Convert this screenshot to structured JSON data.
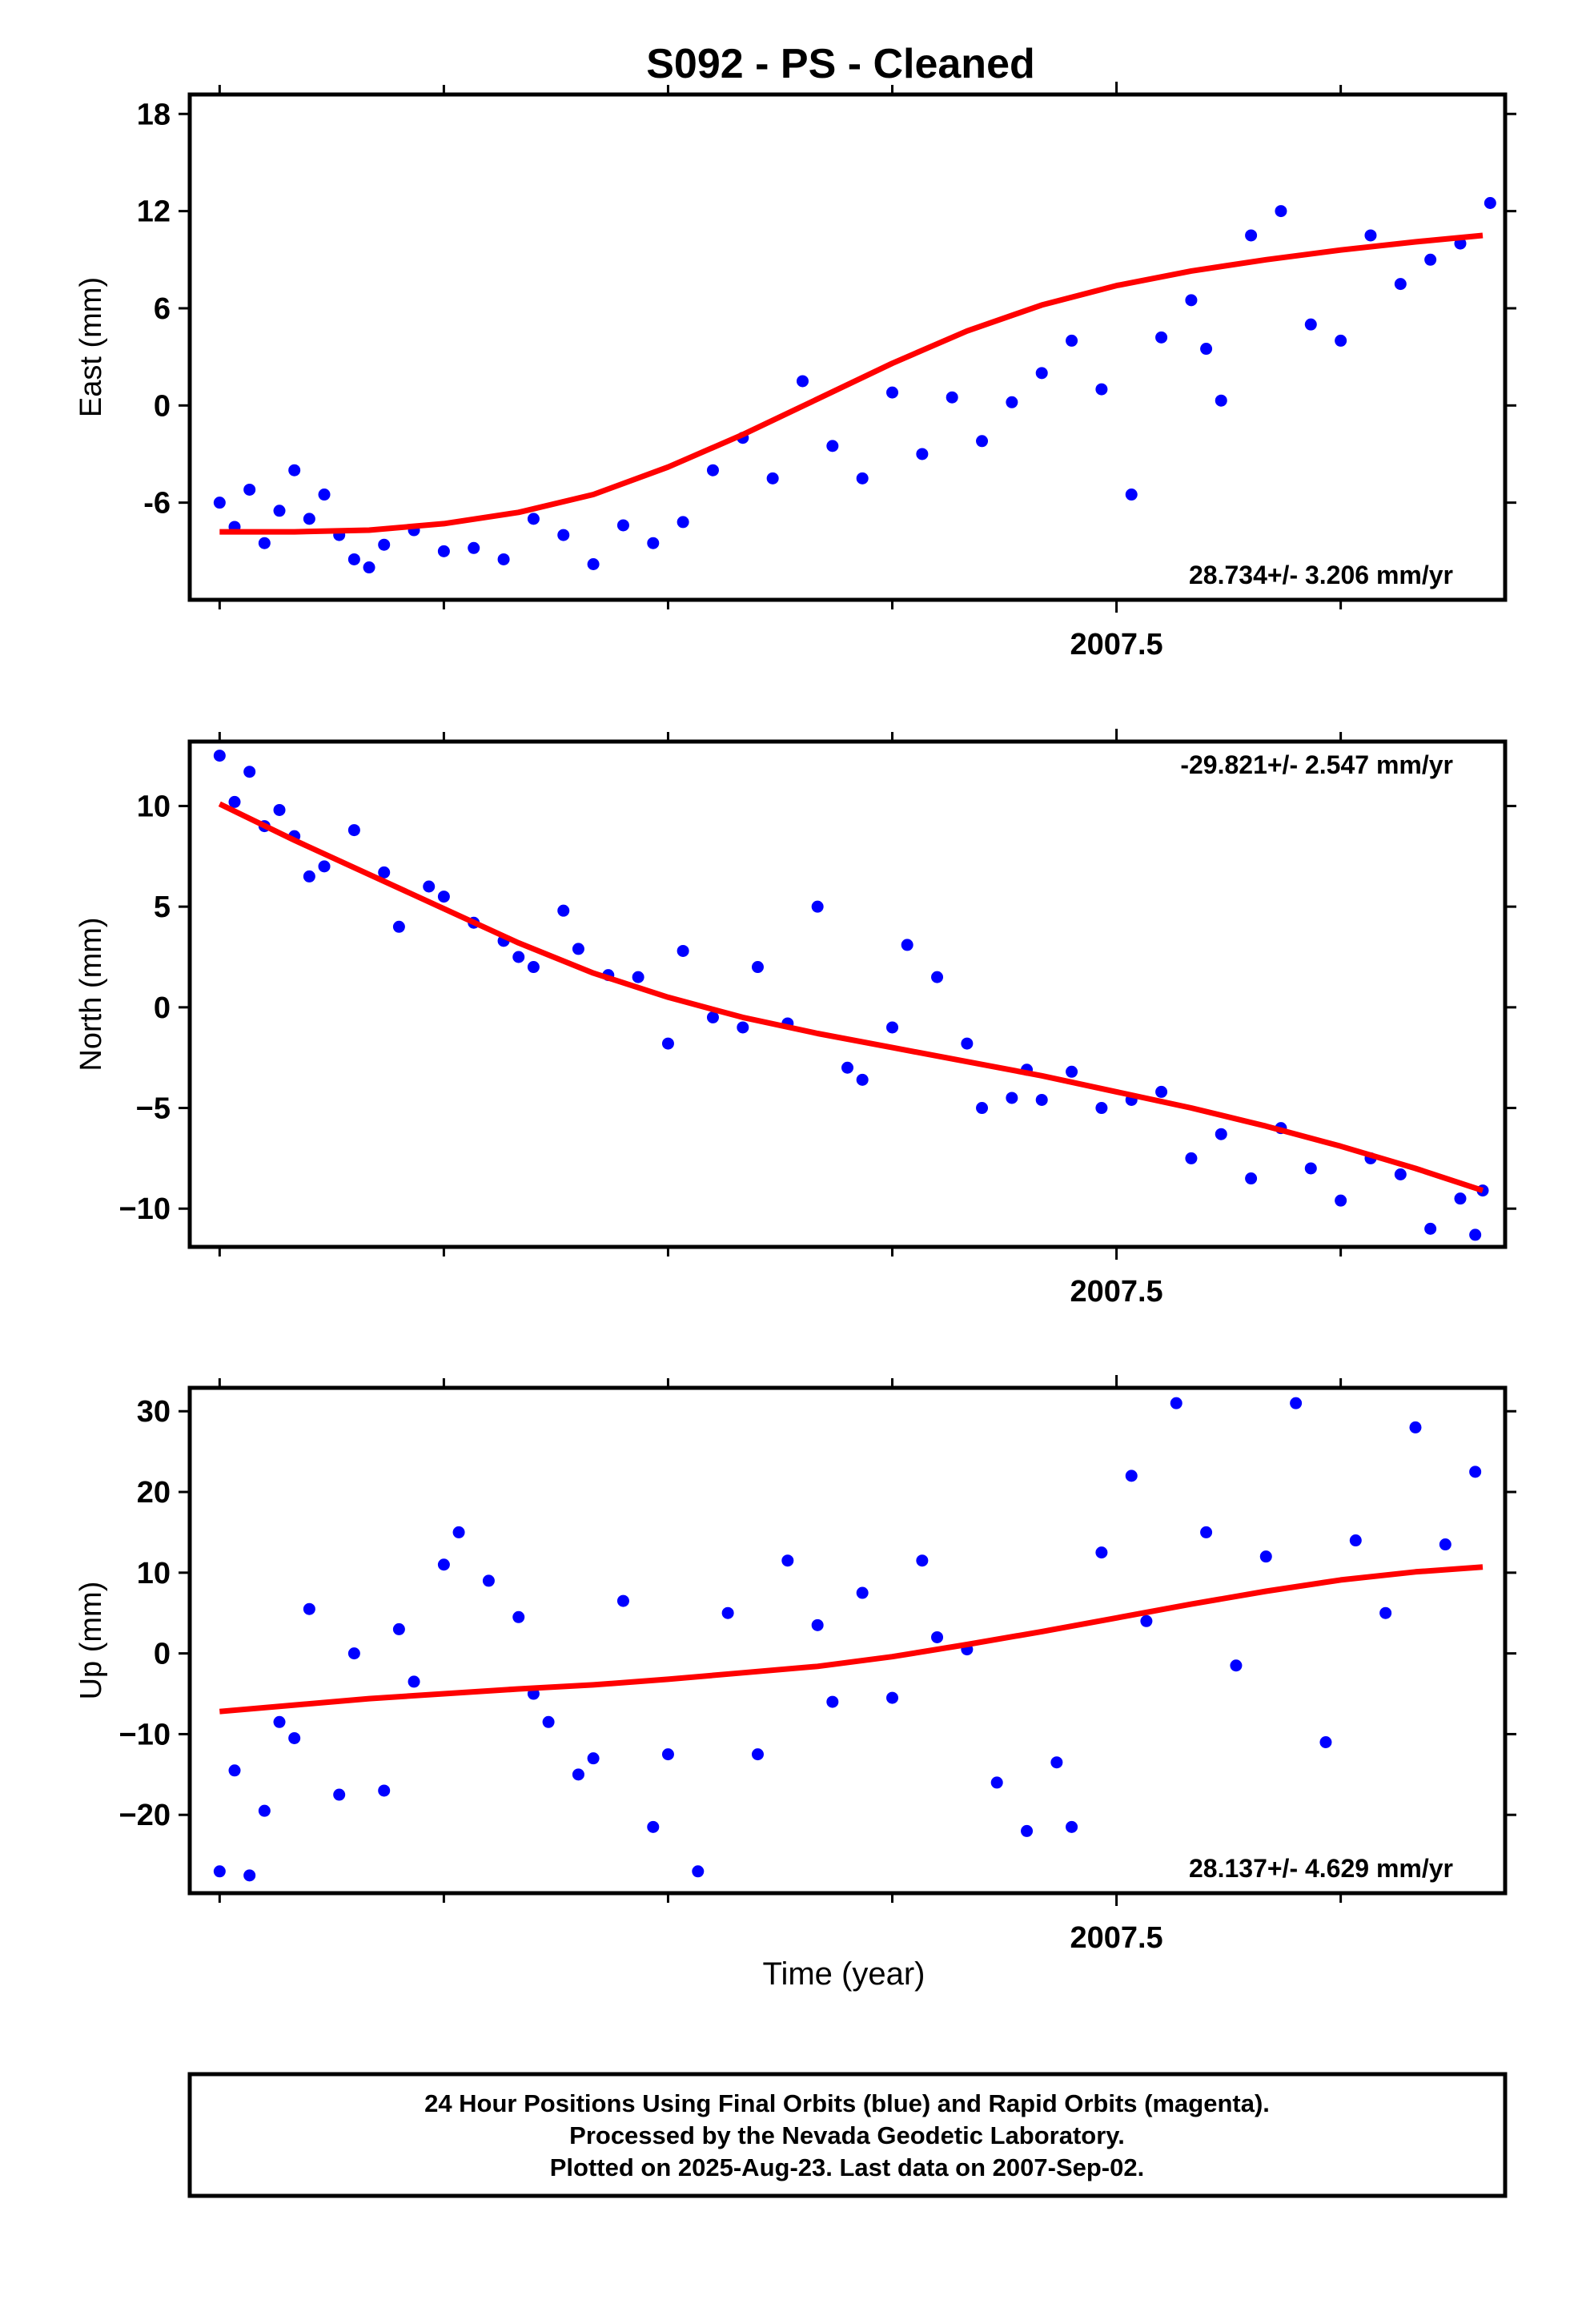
{
  "page_title": "S092  - PS - Cleaned",
  "x_axis_label": "Time (year)",
  "footer": {
    "line1": "24 Hour Positions Using Final Orbits (blue) and Rapid Orbits (magenta).",
    "line2": "Processed by the Nevada Geodetic Laboratory.",
    "line3": "Plotted on 2025-Aug-23. Last data on 2007-Sep-02."
  },
  "colors": {
    "points": "#0000ff",
    "fit": "#ff0000",
    "frame": "#000000"
  },
  "chart_data": [
    {
      "type": "scatter",
      "ylabel": "East (mm)",
      "xlim": [
        2006.88,
        2007.76
      ],
      "ylim": [
        -12.0,
        19.2
      ],
      "x_major_ticks": [
        2007.5
      ],
      "x_major_labels": [
        "2007.5"
      ],
      "x_minor_ticks": [
        2006.9,
        2007.05,
        2007.2,
        2007.35,
        2007.65
      ],
      "yticks": [
        -6,
        0,
        6,
        12,
        18
      ],
      "ytick_labels": [
        "-6",
        "0",
        "6",
        "12",
        "18"
      ],
      "rate_label": "28.734+/- 3.206 mm/yr",
      "rate_position": "bottom-right",
      "series": [
        {
          "kind": "points",
          "x": [
            2006.9,
            2006.91,
            2006.92,
            2006.93,
            2006.94,
            2006.95,
            2006.96,
            2006.97,
            2006.98,
            2006.99,
            2007.0,
            2007.01,
            2007.03,
            2007.05,
            2007.07,
            2007.09,
            2007.11,
            2007.13,
            2007.15,
            2007.17,
            2007.19,
            2007.21,
            2007.23,
            2007.25,
            2007.27,
            2007.29,
            2007.31,
            2007.33,
            2007.35,
            2007.37,
            2007.39,
            2007.41,
            2007.43,
            2007.45,
            2007.47,
            2007.49,
            2007.51,
            2007.53,
            2007.55,
            2007.56,
            2007.57,
            2007.59,
            2007.61,
            2007.63,
            2007.65,
            2007.67,
            2007.69,
            2007.71,
            2007.73,
            2007.75
          ],
          "y": [
            -6.0,
            -7.5,
            -5.2,
            -8.5,
            -6.5,
            -4.0,
            -7.0,
            -5.5,
            -8.0,
            -9.5,
            -10.0,
            -8.6,
            -7.7,
            -9.0,
            -8.8,
            -9.5,
            -7.0,
            -8.0,
            -9.8,
            -7.4,
            -8.5,
            -7.2,
            -4.0,
            -2.0,
            -4.5,
            1.5,
            -2.5,
            -4.5,
            0.8,
            -3.0,
            0.5,
            -2.2,
            0.2,
            2.0,
            4.0,
            1.0,
            -5.5,
            4.2,
            6.5,
            3.5,
            0.3,
            10.5,
            12.0,
            5.0,
            4.0,
            10.5,
            7.5,
            9.0,
            10.0,
            12.5
          ]
        },
        {
          "kind": "fit",
          "x": [
            2006.9,
            2006.95,
            2007.0,
            2007.05,
            2007.1,
            2007.15,
            2007.2,
            2007.25,
            2007.3,
            2007.35,
            2007.4,
            2007.45,
            2007.5,
            2007.55,
            2007.6,
            2007.65,
            2007.7,
            2007.745
          ],
          "y": [
            -7.8,
            -7.8,
            -7.7,
            -7.3,
            -6.6,
            -5.5,
            -3.8,
            -1.8,
            0.4,
            2.6,
            4.6,
            6.2,
            7.4,
            8.3,
            9.0,
            9.6,
            10.1,
            10.5
          ]
        }
      ]
    },
    {
      "type": "scatter",
      "ylabel": "North (mm)",
      "xlim": [
        2006.88,
        2007.76
      ],
      "ylim": [
        -11.9,
        13.2
      ],
      "x_major_ticks": [
        2007.5
      ],
      "x_major_labels": [
        "2007.5"
      ],
      "x_minor_ticks": [
        2006.9,
        2007.05,
        2007.2,
        2007.35,
        2007.65
      ],
      "yticks": [
        -10,
        -5,
        0,
        5,
        10
      ],
      "ytick_labels": [
        "−10",
        "−5",
        "0",
        "5",
        "10"
      ],
      "rate_label": "-29.821+/- 2.547 mm/yr",
      "rate_position": "top-right",
      "series": [
        {
          "kind": "points",
          "x": [
            2006.9,
            2006.91,
            2006.92,
            2006.93,
            2006.94,
            2006.95,
            2006.96,
            2006.97,
            2006.99,
            2007.01,
            2007.02,
            2007.04,
            2007.05,
            2007.07,
            2007.09,
            2007.1,
            2007.11,
            2007.13,
            2007.14,
            2007.16,
            2007.18,
            2007.2,
            2007.21,
            2007.23,
            2007.25,
            2007.26,
            2007.28,
            2007.3,
            2007.32,
            2007.33,
            2007.35,
            2007.36,
            2007.38,
            2007.4,
            2007.41,
            2007.43,
            2007.44,
            2007.45,
            2007.47,
            2007.49,
            2007.51,
            2007.53,
            2007.55,
            2007.57,
            2007.59,
            2007.61,
            2007.63,
            2007.65,
            2007.67,
            2007.69,
            2007.71,
            2007.73,
            2007.74,
            2007.745
          ],
          "y": [
            12.5,
            10.2,
            11.7,
            9.0,
            9.8,
            8.5,
            6.5,
            7.0,
            8.8,
            6.7,
            4.0,
            6.0,
            5.5,
            4.2,
            3.3,
            2.5,
            2.0,
            4.8,
            2.9,
            1.6,
            1.5,
            -1.8,
            2.8,
            -0.5,
            -1.0,
            2.0,
            -0.8,
            5.0,
            -3.0,
            -3.6,
            -1.0,
            3.1,
            1.5,
            -1.8,
            -5.0,
            -4.5,
            -3.1,
            -4.6,
            -3.2,
            -5.0,
            -4.6,
            -4.2,
            -7.5,
            -6.3,
            -8.5,
            -6.0,
            -8.0,
            -9.6,
            -7.5,
            -8.3,
            -11.0,
            -9.5,
            -11.3,
            -9.1
          ]
        },
        {
          "kind": "fit",
          "x": [
            2006.9,
            2006.95,
            2007.0,
            2007.05,
            2007.1,
            2007.15,
            2007.2,
            2007.25,
            2007.3,
            2007.35,
            2007.4,
            2007.45,
            2007.5,
            2007.55,
            2007.6,
            2007.65,
            2007.7,
            2007.745
          ],
          "y": [
            10.1,
            8.3,
            6.6,
            4.9,
            3.2,
            1.7,
            0.5,
            -0.5,
            -1.3,
            -2.0,
            -2.7,
            -3.4,
            -4.2,
            -5.0,
            -5.9,
            -6.9,
            -8.0,
            -9.1
          ]
        }
      ]
    },
    {
      "type": "scatter",
      "ylabel": "Up (mm)",
      "xlim": [
        2006.88,
        2007.76
      ],
      "ylim": [
        -29.7,
        32.9
      ],
      "x_major_ticks": [
        2007.5
      ],
      "x_major_labels": [
        "2007.5"
      ],
      "x_minor_ticks": [
        2006.9,
        2007.05,
        2007.2,
        2007.35,
        2007.65
      ],
      "yticks": [
        -20,
        -10,
        0,
        10,
        20,
        30
      ],
      "ytick_labels": [
        "−20",
        "−10",
        "0",
        "10",
        "20",
        "30"
      ],
      "rate_label": "28.137+/- 4.629 mm/yr",
      "rate_position": "bottom-right",
      "series": [
        {
          "kind": "points",
          "x": [
            2006.9,
            2006.91,
            2006.92,
            2006.93,
            2006.94,
            2006.95,
            2006.96,
            2006.98,
            2006.99,
            2007.01,
            2007.02,
            2007.03,
            2007.05,
            2007.06,
            2007.08,
            2007.1,
            2007.11,
            2007.12,
            2007.14,
            2007.15,
            2007.17,
            2007.19,
            2007.2,
            2007.22,
            2007.24,
            2007.26,
            2007.28,
            2007.3,
            2007.31,
            2007.33,
            2007.35,
            2007.37,
            2007.38,
            2007.4,
            2007.42,
            2007.44,
            2007.46,
            2007.47,
            2007.49,
            2007.51,
            2007.52,
            2007.54,
            2007.56,
            2007.58,
            2007.6,
            2007.62,
            2007.64,
            2007.66,
            2007.68,
            2007.7,
            2007.72,
            2007.74
          ],
          "y": [
            -27.0,
            -14.5,
            -27.5,
            -19.5,
            -8.5,
            -10.5,
            5.5,
            -17.5,
            0.0,
            -17.0,
            3.0,
            -3.5,
            11.0,
            15.0,
            9.0,
            4.5,
            -5.0,
            -8.5,
            -15.0,
            -13.0,
            6.5,
            -21.5,
            -12.5,
            -27.0,
            5.0,
            -12.5,
            11.5,
            3.5,
            -6.0,
            7.5,
            -5.5,
            11.5,
            2.0,
            0.5,
            -16.0,
            -22.0,
            -13.5,
            -21.5,
            12.5,
            22.0,
            4.0,
            31.0,
            15.0,
            -1.5,
            12.0,
            31.0,
            -11.0,
            14.0,
            5.0,
            28.0,
            13.5,
            22.5
          ]
        },
        {
          "kind": "fit",
          "x": [
            2006.9,
            2006.95,
            2007.0,
            2007.05,
            2007.1,
            2007.15,
            2007.2,
            2007.25,
            2007.3,
            2007.35,
            2007.4,
            2007.45,
            2007.5,
            2007.55,
            2007.6,
            2007.65,
            2007.7,
            2007.745
          ],
          "y": [
            -7.2,
            -6.4,
            -5.6,
            -5.0,
            -4.4,
            -3.9,
            -3.2,
            -2.4,
            -1.6,
            -0.4,
            1.1,
            2.7,
            4.4,
            6.1,
            7.7,
            9.1,
            10.1,
            10.7
          ]
        }
      ]
    }
  ]
}
